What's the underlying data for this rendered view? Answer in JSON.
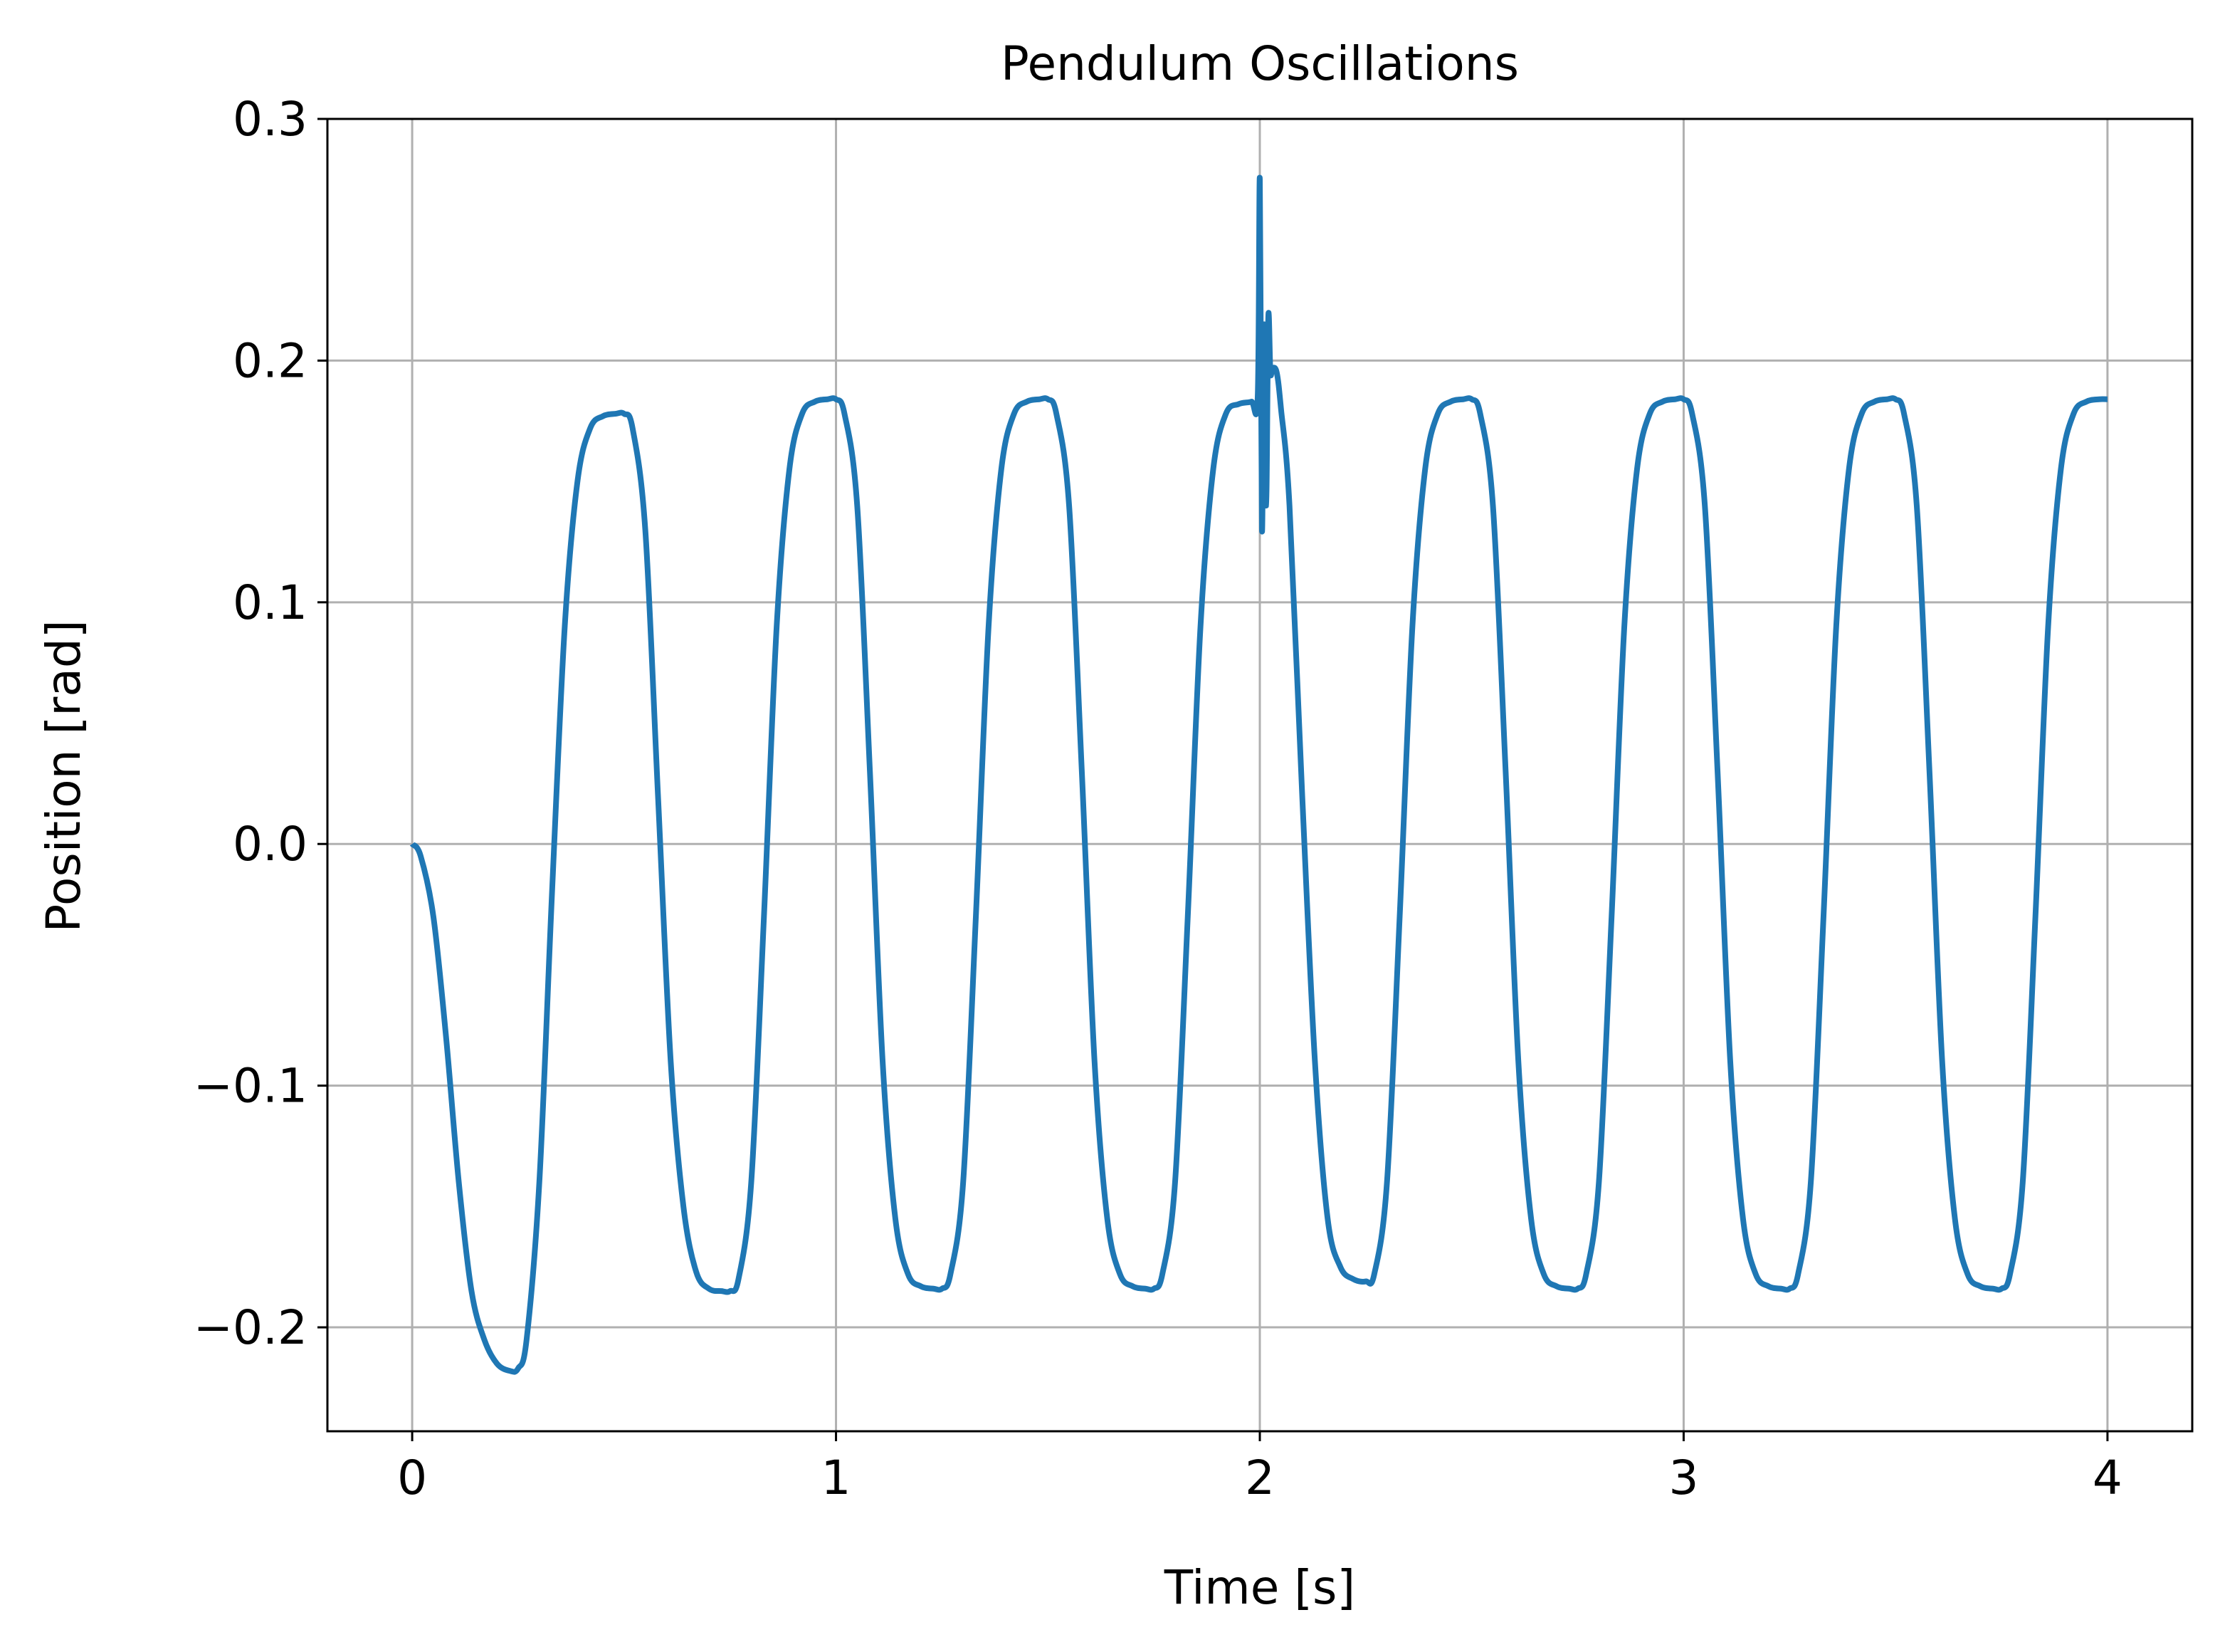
{
  "chart_data": {
    "type": "line",
    "title": "Pendulum Oscillations",
    "xlabel": "Time [s]",
    "ylabel": "Position [rad]",
    "xlim": [
      -0.2,
      4.2
    ],
    "ylim": [
      -0.243,
      0.3
    ],
    "x_ticks": [
      0,
      1,
      2,
      3,
      4
    ],
    "x_tick_labels": [
      "0",
      "1",
      "2",
      "3",
      "4"
    ],
    "y_ticks": [
      -0.2,
      -0.1,
      0.0,
      0.1,
      0.2,
      0.3
    ],
    "y_tick_labels": [
      "−0.2",
      "−0.1",
      "0.0",
      "0.1",
      "0.2",
      "0.3"
    ],
    "grid": true,
    "legend": "none",
    "line_color": "#1f77b4",
    "series": [
      {
        "x": [
          0.0,
          0.02,
          0.05,
          0.08,
          0.11,
          0.14,
          0.17,
          0.2,
          0.23,
          0.25,
          0.27,
          0.3,
          0.33,
          0.36,
          0.39,
          0.42,
          0.45,
          0.48,
          0.5,
          0.52,
          0.55,
          0.58,
          0.61,
          0.64,
          0.67,
          0.7,
          0.73,
          0.75,
          0.77,
          0.8,
          0.83,
          0.86,
          0.89,
          0.92,
          0.95,
          0.98,
          1.0,
          1.02,
          1.05,
          1.08,
          1.11,
          1.14,
          1.17,
          1.2,
          1.23,
          1.25,
          1.27,
          1.3,
          1.33,
          1.36,
          1.39,
          1.42,
          1.45,
          1.48,
          1.5,
          1.52,
          1.55,
          1.58,
          1.61,
          1.64,
          1.67,
          1.7,
          1.73,
          1.75,
          1.77,
          1.8,
          1.83,
          1.86,
          1.89,
          1.92,
          1.95,
          1.98,
          1.995,
          2.0,
          2.005,
          2.01,
          2.015,
          2.02,
          2.025,
          2.03,
          2.04,
          2.05,
          2.07,
          2.1,
          2.13,
          2.16,
          2.19,
          2.22,
          2.25,
          2.27,
          2.3,
          2.33,
          2.36,
          2.39,
          2.42,
          2.45,
          2.48,
          2.5,
          2.52,
          2.55,
          2.58,
          2.61,
          2.64,
          2.67,
          2.7,
          2.73,
          2.75,
          2.77,
          2.8,
          2.83,
          2.86,
          2.89,
          2.92,
          2.95,
          2.98,
          3.0,
          3.02,
          3.05,
          3.08,
          3.11,
          3.14,
          3.17,
          3.2,
          3.23,
          3.25,
          3.27,
          3.3,
          3.33,
          3.36,
          3.39,
          3.42,
          3.45,
          3.48,
          3.5,
          3.52,
          3.55,
          3.58,
          3.61,
          3.64,
          3.67,
          3.7,
          3.73,
          3.75,
          3.77,
          3.8,
          3.83,
          3.86,
          3.89,
          3.92,
          3.95,
          3.98,
          4.0
        ],
        "y": [
          0.0,
          -0.005,
          -0.03,
          -0.08,
          -0.14,
          -0.185,
          -0.205,
          -0.215,
          -0.218,
          -0.217,
          -0.205,
          -0.14,
          -0.02,
          0.09,
          0.15,
          0.172,
          0.177,
          0.178,
          0.178,
          0.172,
          0.13,
          0.02,
          -0.09,
          -0.15,
          -0.177,
          -0.184,
          -0.185,
          -0.185,
          -0.18,
          -0.14,
          -0.03,
          0.09,
          0.155,
          0.178,
          0.183,
          0.184,
          0.184,
          0.178,
          0.14,
          0.03,
          -0.09,
          -0.155,
          -0.178,
          -0.183,
          -0.184,
          -0.184,
          -0.178,
          -0.14,
          -0.03,
          0.09,
          0.155,
          0.178,
          0.183,
          0.184,
          0.184,
          0.178,
          0.14,
          0.03,
          -0.09,
          -0.155,
          -0.178,
          -0.183,
          -0.184,
          -0.184,
          -0.178,
          -0.14,
          -0.03,
          0.09,
          0.155,
          0.178,
          0.182,
          0.183,
          0.185,
          0.275,
          0.13,
          0.215,
          0.14,
          0.218,
          0.195,
          0.197,
          0.195,
          0.18,
          0.14,
          0.02,
          -0.09,
          -0.155,
          -0.175,
          -0.18,
          -0.181,
          -0.178,
          -0.14,
          -0.03,
          0.09,
          0.155,
          0.178,
          0.183,
          0.184,
          0.184,
          0.178,
          0.14,
          0.03,
          -0.09,
          -0.155,
          -0.178,
          -0.183,
          -0.184,
          -0.184,
          -0.178,
          -0.14,
          -0.03,
          0.09,
          0.155,
          0.178,
          0.183,
          0.184,
          0.184,
          0.178,
          0.14,
          0.03,
          -0.09,
          -0.155,
          -0.178,
          -0.183,
          -0.184,
          -0.184,
          -0.178,
          -0.14,
          -0.03,
          0.09,
          0.155,
          0.178,
          0.183,
          0.184,
          0.184,
          0.178,
          0.14,
          0.03,
          -0.09,
          -0.155,
          -0.178,
          -0.183,
          -0.184,
          -0.184,
          -0.178,
          -0.14,
          -0.03,
          0.09,
          0.155,
          0.178,
          0.183,
          0.184,
          0.184
        ]
      }
    ]
  }
}
